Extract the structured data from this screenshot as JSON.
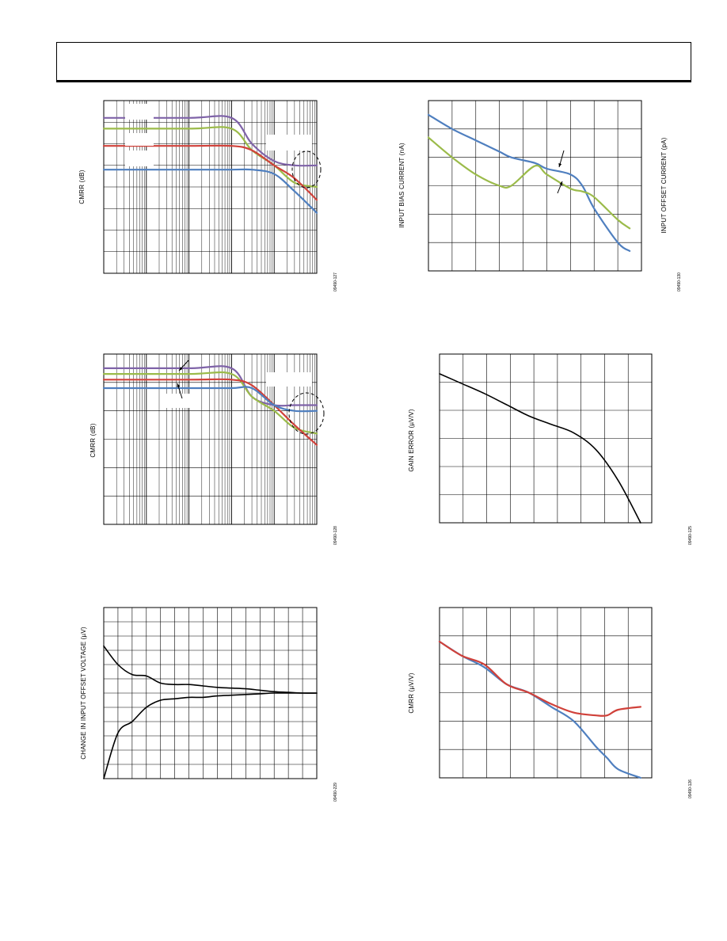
{
  "page": {
    "header_title": ""
  },
  "colors": {
    "purple": "#7f63a8",
    "green": "#9bbb4a",
    "red": "#d0413a",
    "blue": "#4f7fbf",
    "black": "#000000"
  },
  "charts": {
    "c1": {
      "ylabel": "CMRR (dB)",
      "figure_id": "09490-127"
    },
    "c2": {
      "ylabel": "INPUT BIAS CURRENT (nA)",
      "ylabel2": "INPUT OFFSET CURRENT (pA)",
      "figure_id": "09490-130"
    },
    "c3": {
      "ylabel": "CMRR (dB)",
      "figure_id": "09490-128"
    },
    "c4": {
      "ylabel": "GAIN ERROR (µV/V)",
      "figure_id": "09490-125"
    },
    "c5": {
      "ylabel": "CHANGE IN INPUT OFFSET VOLTAGE (µV)",
      "figure_id": "09490-229"
    },
    "c6": {
      "ylabel": "CMRR (µV/V)",
      "figure_id": "09490-126"
    }
  },
  "chart_data": [
    {
      "type": "line",
      "title": "",
      "xlabel": "",
      "ylabel": "CMRR (dB)",
      "x_scale": "log",
      "xlim": [
        1,
        100000
      ],
      "ylim": [
        0,
        8
      ],
      "grid": true,
      "x": [
        1,
        100,
        1000,
        3000,
        10000,
        30000,
        100000
      ],
      "series": [
        {
          "color": "purple",
          "values": [
            7.2,
            7.2,
            7.2,
            6.0,
            5.2,
            5.0,
            5.0
          ]
        },
        {
          "color": "green",
          "values": [
            6.7,
            6.7,
            6.7,
            5.7,
            5.0,
            4.2,
            4.0
          ]
        },
        {
          "color": "red",
          "values": [
            5.9,
            5.9,
            5.9,
            5.7,
            5.0,
            4.4,
            3.4
          ]
        },
        {
          "color": "blue",
          "values": [
            4.8,
            4.8,
            4.8,
            4.8,
            4.6,
            3.8,
            2.8
          ]
        }
      ]
    },
    {
      "type": "line",
      "title": "",
      "xlabel": "",
      "ylabel": "INPUT BIAS CURRENT (nA)",
      "xlim": [
        0,
        9
      ],
      "ylim": [
        0,
        6
      ],
      "grid": true,
      "x": [
        0,
        1,
        2,
        3,
        3.5,
        4.5,
        5,
        6,
        6.5,
        7,
        8,
        8.5
      ],
      "series": [
        {
          "color": "blue",
          "values": [
            5.5,
            5.0,
            4.6,
            4.2,
            4.0,
            3.8,
            3.6,
            3.4,
            3.0,
            2.2,
            1.0,
            0.7
          ]
        },
        {
          "color": "green",
          "values": [
            4.7,
            4.0,
            3.4,
            3.0,
            3.0,
            3.7,
            3.4,
            2.9,
            2.8,
            2.6,
            1.8,
            1.5
          ]
        }
      ]
    },
    {
      "type": "line",
      "title": "",
      "xlabel": "",
      "ylabel": "CMRR (dB)",
      "x_scale": "log",
      "xlim": [
        1,
        100000
      ],
      "ylim": [
        0,
        6
      ],
      "grid": true,
      "x": [
        1,
        100,
        1000,
        3000,
        10000,
        30000,
        100000
      ],
      "series": [
        {
          "color": "purple",
          "values": [
            5.5,
            5.5,
            5.5,
            4.5,
            4.2,
            4.2,
            4.2
          ]
        },
        {
          "color": "green",
          "values": [
            5.3,
            5.3,
            5.3,
            4.5,
            4.0,
            3.4,
            3.2
          ]
        },
        {
          "color": "red",
          "values": [
            5.1,
            5.1,
            5.1,
            4.9,
            4.2,
            3.5,
            2.8
          ]
        },
        {
          "color": "blue",
          "values": [
            4.8,
            4.8,
            4.8,
            4.8,
            4.2,
            4.0,
            4.0
          ]
        }
      ]
    },
    {
      "type": "line",
      "title": "",
      "xlabel": "",
      "ylabel": "GAIN ERROR (µV/V)",
      "xlim": [
        0,
        9.5
      ],
      "ylim": [
        0,
        6
      ],
      "grid": true,
      "x": [
        0,
        1,
        2,
        3,
        4,
        5,
        6,
        7,
        8,
        9
      ],
      "series": [
        {
          "color": "black",
          "values": [
            5.3,
            4.95,
            4.6,
            4.2,
            3.8,
            3.5,
            3.2,
            2.6,
            1.5,
            0.0
          ]
        }
      ]
    },
    {
      "type": "line",
      "title": "",
      "xlabel": "",
      "ylabel": "CHANGE IN INPUT OFFSET VOLTAGE (µV)",
      "xlim": [
        0,
        15
      ],
      "ylim": [
        -6,
        6
      ],
      "grid": true,
      "x": [
        0,
        1,
        2,
        3,
        4,
        5,
        6,
        7,
        8,
        9,
        10,
        11,
        12,
        13,
        14,
        15
      ],
      "series": [
        {
          "color": "black",
          "values": [
            3.3,
            2.0,
            1.3,
            1.2,
            0.7,
            0.6,
            0.6,
            0.5,
            0.4,
            0.35,
            0.3,
            0.2,
            0.1,
            0.05,
            0.0,
            0.0
          ]
        },
        {
          "color": "black",
          "values": [
            -6.0,
            -2.8,
            -2.0,
            -1.0,
            -0.5,
            -0.4,
            -0.3,
            -0.3,
            -0.2,
            -0.15,
            -0.1,
            -0.05,
            0.0,
            0.0,
            0.0,
            0.0
          ]
        }
      ]
    },
    {
      "type": "line",
      "title": "",
      "xlabel": "",
      "ylabel": "CMRR (µV/V)",
      "xlim": [
        0,
        9.5
      ],
      "ylim": [
        0,
        6
      ],
      "grid": true,
      "x": [
        0,
        1,
        2,
        3,
        4,
        5,
        6,
        7,
        7.5,
        8,
        9
      ],
      "series": [
        {
          "color": "blue",
          "values": [
            4.8,
            4.3,
            3.9,
            3.3,
            3.0,
            2.5,
            2.0,
            1.1,
            0.7,
            0.3,
            0.0
          ]
        },
        {
          "color": "red",
          "values": [
            4.8,
            4.3,
            4.0,
            3.3,
            3.0,
            2.6,
            2.3,
            2.2,
            2.2,
            2.4,
            2.5
          ]
        }
      ]
    }
  ]
}
